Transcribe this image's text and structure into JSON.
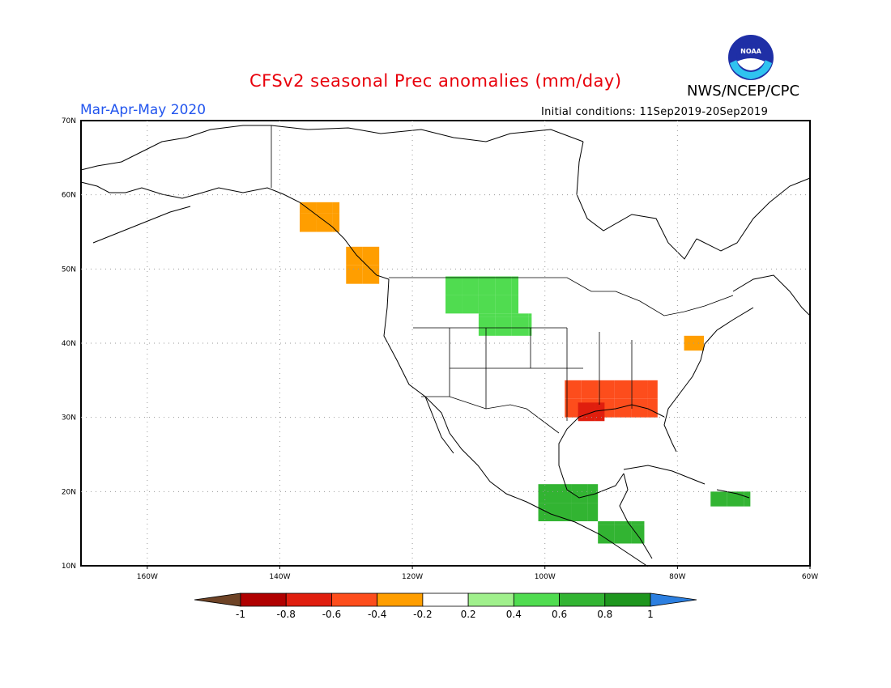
{
  "header": {
    "title": "CFSv2 seasonal Prec anomalies (mm/day)",
    "agency": "NWS/NCEP/CPC",
    "period": "Mar-Apr-May 2020",
    "initial_conditions": "Initial conditions: 11Sep2019-20Sep2019",
    "logo_text": "NOAA"
  },
  "map": {
    "lon_range": [
      -170,
      -60
    ],
    "lat_range": [
      10,
      70
    ],
    "lat_ticks": [
      {
        "value": 70,
        "label": "70N"
      },
      {
        "value": 60,
        "label": "60N"
      },
      {
        "value": 50,
        "label": "50N"
      },
      {
        "value": 40,
        "label": "40N"
      },
      {
        "value": 30,
        "label": "30N"
      },
      {
        "value": 20,
        "label": "20N"
      },
      {
        "value": 10,
        "label": "10N"
      }
    ],
    "lon_ticks": [
      {
        "value": -160,
        "label": "160W"
      },
      {
        "value": -140,
        "label": "140W"
      },
      {
        "value": -120,
        "label": "120W"
      },
      {
        "value": -100,
        "label": "100W"
      },
      {
        "value": -80,
        "label": "80W"
      },
      {
        "value": -60,
        "label": "60W"
      }
    ],
    "grid": "dotted",
    "anomaly_regions": [
      {
        "region": "Gulf Coast / Southeast US",
        "anomaly": -0.5
      },
      {
        "region": "Louisiana core",
        "anomaly": -0.7
      },
      {
        "region": "Pacific Northwest coast / BC",
        "anomaly": -0.4
      },
      {
        "region": "Mid-Atlantic",
        "anomaly": -0.3
      },
      {
        "region": "Northern Plains / Montana",
        "anomaly": 0.4
      },
      {
        "region": "Southern Mexico / Central America",
        "anomaly": 0.6
      },
      {
        "region": "Greater Antilles",
        "anomaly": 0.7
      }
    ]
  },
  "colorbar": {
    "ticks": [
      "-1",
      "-0.8",
      "-0.6",
      "-0.4",
      "-0.2",
      "0.2",
      "0.4",
      "0.6",
      "0.8",
      "1"
    ],
    "colors": {
      "below": "#6e4326",
      "bins": [
        "#b00000",
        "#e01e0e",
        "#fd4d1c",
        "#ff9e00",
        "#ffffff",
        "#a0f08c",
        "#50dc50",
        "#32b432",
        "#1e961e"
      ],
      "above": "#2c7fe0"
    }
  }
}
